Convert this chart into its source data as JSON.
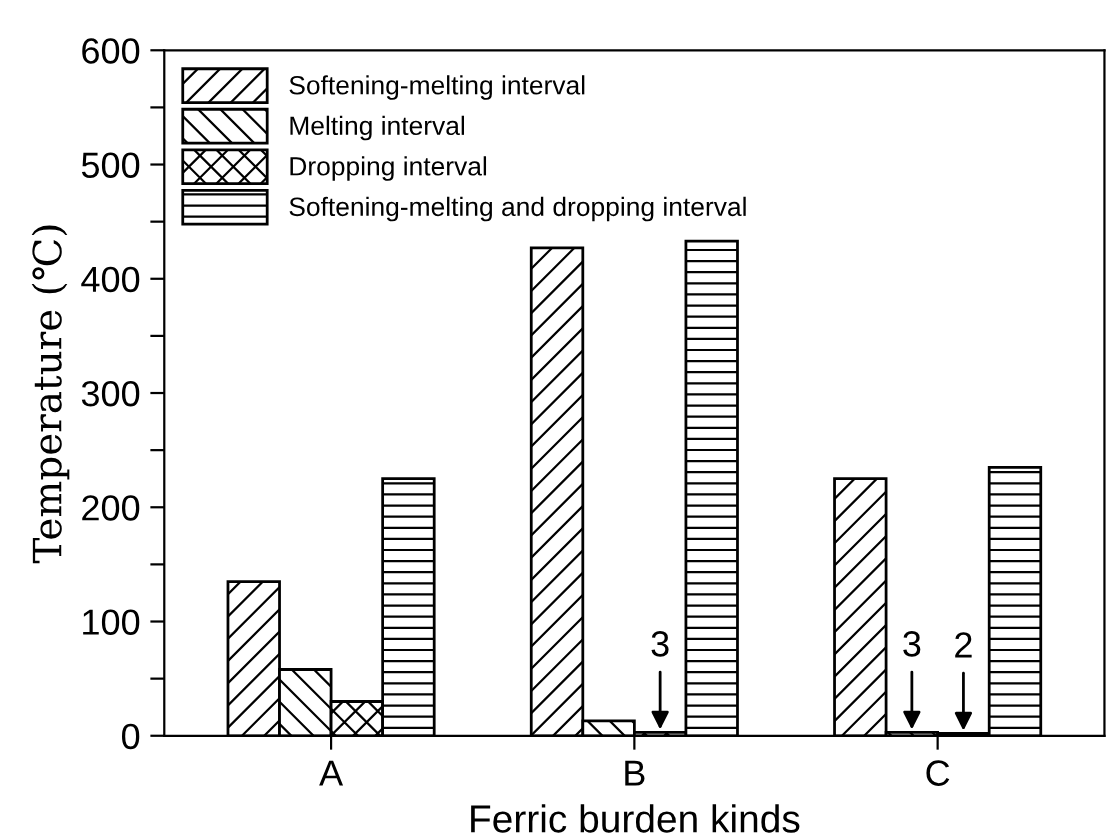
{
  "chart_data": {
    "type": "bar",
    "xlabel": "Ferric burden kinds",
    "ylabel": "Temperature (℃)",
    "categories": [
      "A",
      "B",
      "C"
    ],
    "series": [
      {
        "name": "Softening-melting interval",
        "color": "#000000",
        "values": [
          135,
          427,
          225
        ]
      },
      {
        "name": "Melting interval",
        "color": "#000000",
        "values": [
          58,
          13,
          3
        ],
        "value_labels": [
          null,
          null,
          "3"
        ]
      },
      {
        "name": "Dropping interval",
        "color": "#000000",
        "values": [
          30,
          3,
          2
        ],
        "value_labels": [
          null,
          "3",
          "2"
        ]
      },
      {
        "name": "Softening-melting and dropping interval",
        "color": "#000000",
        "values": [
          225,
          433,
          235
        ]
      }
    ],
    "ylim": [
      0,
      600
    ],
    "yticks": [
      0,
      {
        "value": 50,
        "label": null
      },
      100,
      {
        "value": 150,
        "label": null
      },
      200,
      {
        "value": 250,
        "label": null
      },
      300,
      {
        "value": 350,
        "label": null
      },
      400,
      {
        "value": 450,
        "label": null
      },
      500,
      {
        "value": 550,
        "label": null
      },
      600
    ],
    "legend": "top left",
    "grid": false
  }
}
